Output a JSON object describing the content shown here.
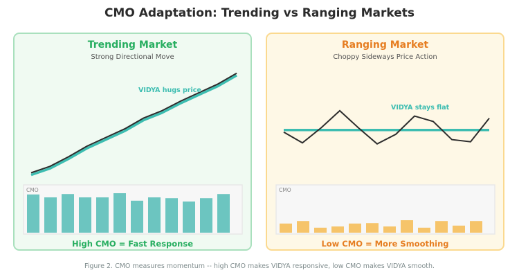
{
  "title": "CMO Adaptation: Trending vs Ranging Markets",
  "caption": "Figure 2. CMO measures momentum -- high CMO makes VIDYA responsive, low CMO makes VIDYA smooth.",
  "colors": {
    "price": "#2c2c2c",
    "vidya": "#3dbdb1",
    "trend_accent": "#27ae60",
    "range_accent": "#e67e22",
    "trend_bar": "#6cc5c0",
    "range_bar": "#f6c46a"
  },
  "panels": [
    {
      "id": "trending",
      "title": "Trending Market",
      "subtitle": "Strong Directional Move",
      "annotation": "VIDYA hugs price",
      "footer": "High CMO = Fast Response",
      "cmo_label": "CMO",
      "price": [
        10,
        16,
        25,
        35,
        43,
        51,
        61,
        68,
        77,
        85,
        93,
        103
      ],
      "vidya": [
        8,
        14,
        23,
        33,
        41,
        49,
        59,
        66,
        75,
        83,
        91,
        101
      ],
      "cmo": [
        92,
        85,
        93,
        85,
        85,
        95,
        77,
        85,
        83,
        75,
        83,
        93
      ]
    },
    {
      "id": "ranging",
      "title": "Ranging Market",
      "subtitle": "Choppy Sideways Price Action",
      "annotation": "VIDYA stays flat",
      "footer": "Low CMO = More Smoothing",
      "cmo_label": "CMO",
      "price": [
        48,
        38,
        52,
        68,
        52,
        37,
        46,
        63,
        58,
        41,
        39,
        61
      ],
      "vidya": [
        50,
        50,
        50,
        50,
        50,
        50,
        50,
        50,
        50,
        50,
        50,
        50
      ],
      "cmo": [
        22,
        28,
        12,
        15,
        22,
        23,
        15,
        30,
        12,
        28,
        17,
        28
      ]
    }
  ]
}
